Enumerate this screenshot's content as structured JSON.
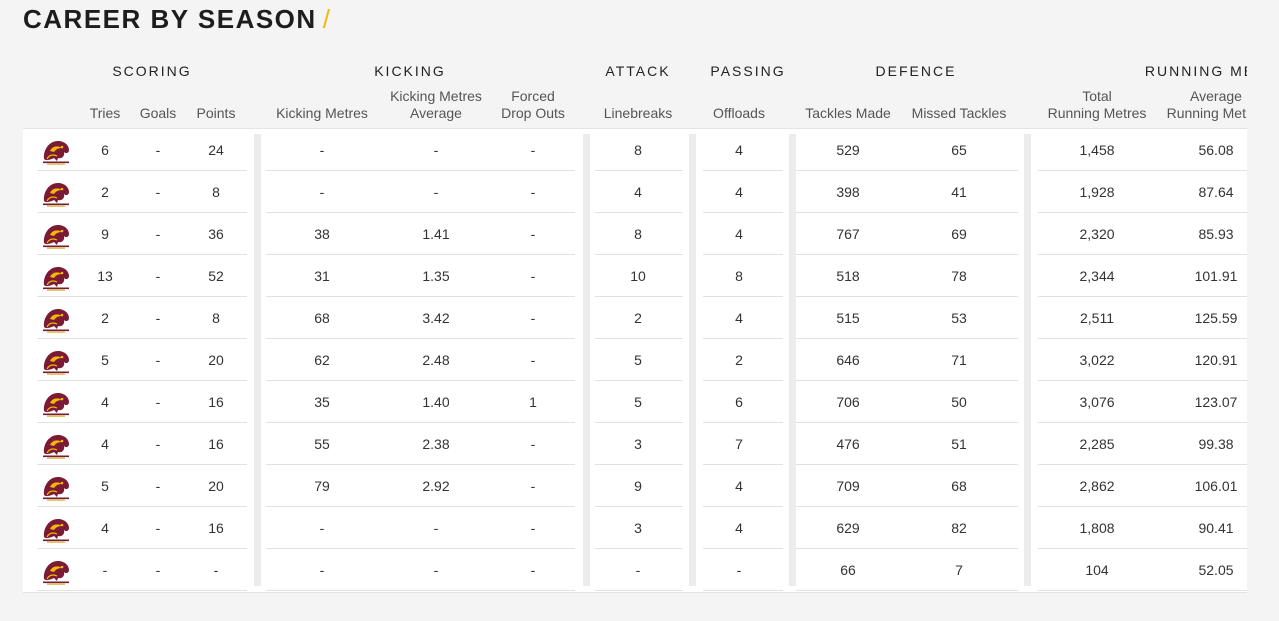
{
  "page": {
    "title": "CAREER BY SEASON",
    "title_slash": "/",
    "accent_color": "#f5b800",
    "logo_icon": "broncos-logo-icon"
  },
  "groups": [
    {
      "key": "scoring",
      "label": "SCORING",
      "center": 152
    },
    {
      "key": "kicking",
      "label": "KICKING",
      "center": 410
    },
    {
      "key": "attack",
      "label": "ATTACK",
      "center": 638
    },
    {
      "key": "passing",
      "label": "PASSING",
      "center": 748
    },
    {
      "key": "defence",
      "label": "DEFENCE",
      "center": 916
    },
    {
      "key": "running",
      "label": "RUNNING ME",
      "center": 1200
    }
  ],
  "columns": [
    {
      "key": "tries",
      "label": "Tries"
    },
    {
      "key": "goals",
      "label": "Goals"
    },
    {
      "key": "points",
      "label": "Points"
    },
    {
      "key": "kicking_metres",
      "label": "Kicking Metres"
    },
    {
      "key": "kicking_metres_avg",
      "label": "Kicking Metres\nAverage"
    },
    {
      "key": "forced_drop_outs",
      "label": "Forced\nDrop Outs"
    },
    {
      "key": "linebreaks",
      "label": "Linebreaks"
    },
    {
      "key": "offloads",
      "label": "Offloads"
    },
    {
      "key": "tackles_made",
      "label": "Tackles Made"
    },
    {
      "key": "missed_tackles",
      "label": "Missed Tackles"
    },
    {
      "key": "total_running_metres",
      "label": "Total\nRunning Metres"
    },
    {
      "key": "avg_running_metres",
      "label": "Average\nRunning Metres"
    }
  ],
  "rows": [
    [
      "6",
      "-",
      "24",
      "-",
      "-",
      "-",
      "8",
      "4",
      "529",
      "65",
      "1,458",
      "56.08"
    ],
    [
      "2",
      "-",
      "8",
      "-",
      "-",
      "-",
      "4",
      "4",
      "398",
      "41",
      "1,928",
      "87.64"
    ],
    [
      "9",
      "-",
      "36",
      "38",
      "1.41",
      "-",
      "8",
      "4",
      "767",
      "69",
      "2,320",
      "85.93"
    ],
    [
      "13",
      "-",
      "52",
      "31",
      "1.35",
      "-",
      "10",
      "8",
      "518",
      "78",
      "2,344",
      "101.91"
    ],
    [
      "2",
      "-",
      "8",
      "68",
      "3.42",
      "-",
      "2",
      "4",
      "515",
      "53",
      "2,511",
      "125.59"
    ],
    [
      "5",
      "-",
      "20",
      "62",
      "2.48",
      "-",
      "5",
      "2",
      "646",
      "71",
      "3,022",
      "120.91"
    ],
    [
      "4",
      "-",
      "16",
      "35",
      "1.40",
      "1",
      "5",
      "6",
      "706",
      "50",
      "3,076",
      "123.07"
    ],
    [
      "4",
      "-",
      "16",
      "55",
      "2.38",
      "-",
      "3",
      "7",
      "476",
      "51",
      "2,285",
      "99.38"
    ],
    [
      "5",
      "-",
      "20",
      "79",
      "2.92",
      "-",
      "9",
      "4",
      "709",
      "68",
      "2,862",
      "106.01"
    ],
    [
      "4",
      "-",
      "16",
      "-",
      "-",
      "-",
      "3",
      "4",
      "629",
      "82",
      "1,808",
      "90.41"
    ],
    [
      "-",
      "-",
      "-",
      "-",
      "-",
      "-",
      "-",
      "-",
      "66",
      "7",
      "104",
      "52.05"
    ]
  ]
}
